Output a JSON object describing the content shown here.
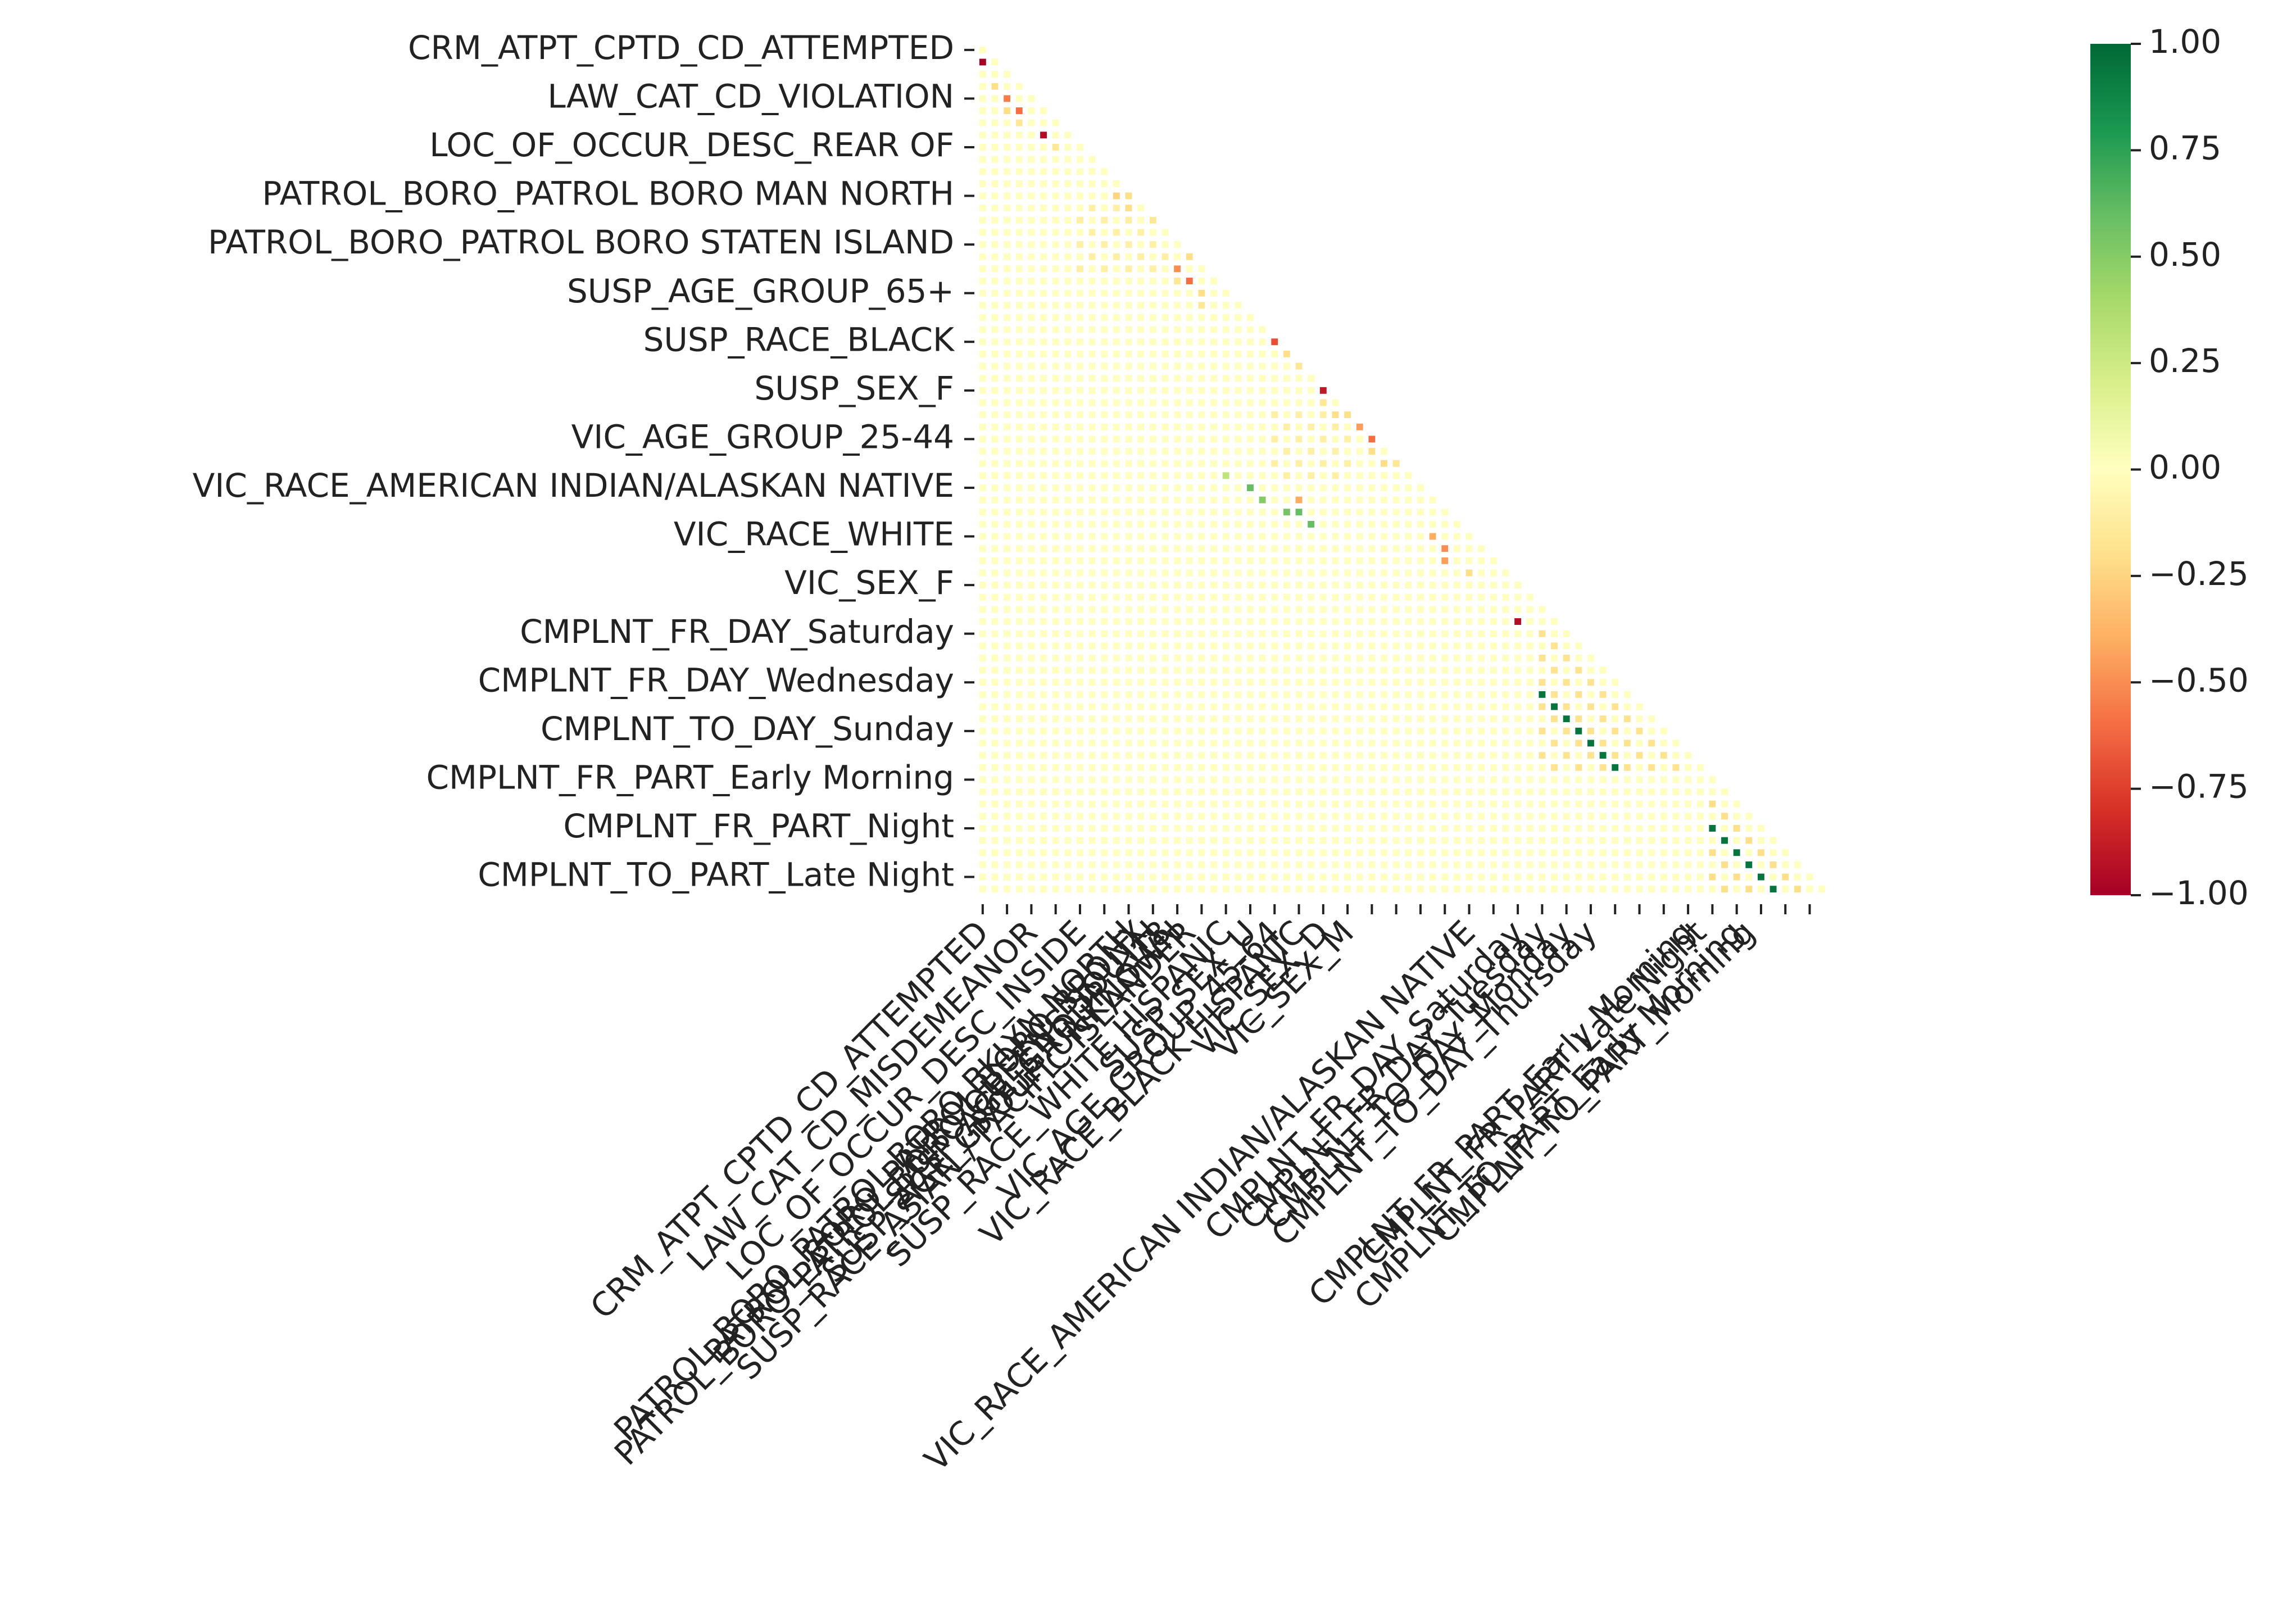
{
  "chart_data": {
    "type": "heatmap",
    "title": "",
    "xlabel": "",
    "ylabel": "",
    "mask": "lower-triangle",
    "n_rows": 70,
    "y_tick_labels": [
      "CRM_ATPT_CPTD_CD_ATTEMPTED",
      "LAW_CAT_CD_VIOLATION",
      "LOC_OF_OCCUR_DESC_REAR OF",
      "PATROL_BORO_PATROL BORO MAN NORTH",
      "PATROL_BORO_PATROL BORO STATEN ISLAND",
      "SUSP_AGE_GROUP_65+",
      "SUSP_RACE_BLACK",
      "SUSP_SEX_F",
      "VIC_AGE_GROUP_25-44",
      "VIC_RACE_AMERICAN INDIAN/ALASKAN NATIVE",
      "VIC_RACE_WHITE",
      "VIC_SEX_F",
      "CMPLNT_FR_DAY_Saturday",
      "CMPLNT_FR_DAY_Wednesday",
      "CMPLNT_TO_DAY_Sunday",
      "CMPLNT_FR_PART_Early Morning",
      "CMPLNT_FR_PART_Night",
      "CMPLNT_TO_PART_Late Night"
    ],
    "x_tick_labels": [
      "CRM_ATPT_CPTD_CD_ATTEMPTED",
      "LAW_CAT_CD_MISDEMEANOR",
      "LOC_OF_OCCUR_DESC_INSIDE",
      "PATROL_BORO_PATROL BORO BKLYN NORTH",
      "PATROL_BORO_PATROL BORO BRONX",
      "PATROL_BORO_PATROL BORO QUEENS SOUTH",
      "SUSP_AGE_GROUP_<18",
      "SUSP_AGE_GROUP_UNKNOWN",
      "SUSP_RACE_ASIAN / PACIFIC ISLANDER",
      "SUSP_RACE_WHITE HISPANIC",
      "SUSP_SEX_U",
      "VIC_AGE_GROUP_45-64",
      "VIC_RACE_BLACK HISPANIC",
      "VIC_SEX_D",
      "VIC_SEX_M",
      "VIC_RACE_AMERICAN INDIAN/ALASKAN NATIVE",
      "CMPLNT_FR_DAY_Saturday",
      "CMPLNT_FR_DAY_Tuesday",
      "CMPLNT_TO_DAY_Monday",
      "CMPLNT_TO_DAY_Thursday",
      "CMPLNT_FR_PART_Early Morning",
      "CMPLNT_FR_PART_Late Night",
      "CMPLNT_TO_PART_Early Morning",
      "CMPLNT_TO_PART_Morning"
    ],
    "colorbar": {
      "min": -1.0,
      "max": 1.0,
      "ticks": [
        "1.00",
        "0.75",
        "0.50",
        "0.25",
        "0.00",
        "−0.25",
        "−0.50",
        "−0.75",
        "−1.00"
      ],
      "colormap": "RdYlGn",
      "stops": [
        "#a50026",
        "#d73027",
        "#f46d43",
        "#fdae61",
        "#fee08b",
        "#ffffbf",
        "#d9ef8b",
        "#a6d96a",
        "#66bd63",
        "#1a9850",
        "#006837"
      ]
    },
    "background_value": 0.0,
    "highlighted_cells": [
      {
        "row": 1,
        "col": 0,
        "value": -1.0
      },
      {
        "row": 3,
        "col": 1,
        "value": -0.2
      },
      {
        "row": 4,
        "col": 2,
        "value": -0.55
      },
      {
        "row": 5,
        "col": 2,
        "value": -0.2
      },
      {
        "row": 5,
        "col": 3,
        "value": -0.6
      },
      {
        "row": 6,
        "col": 3,
        "value": -0.15
      },
      {
        "row": 7,
        "col": 5,
        "value": -0.95
      },
      {
        "row": 8,
        "col": 6,
        "value": -0.15
      },
      {
        "row": 12,
        "col": 11,
        "value": -0.25
      },
      {
        "row": 12,
        "col": 12,
        "value": -0.2
      },
      {
        "row": 13,
        "col": 12,
        "value": -0.2
      },
      {
        "row": 14,
        "col": 14,
        "value": -0.15
      },
      {
        "row": 17,
        "col": 17,
        "value": -0.2
      },
      {
        "row": 18,
        "col": 16,
        "value": -0.5
      },
      {
        "row": 19,
        "col": 16,
        "value": -0.15
      },
      {
        "row": 19,
        "col": 17,
        "value": -0.6
      },
      {
        "row": 20,
        "col": 18,
        "value": -0.2
      },
      {
        "row": 21,
        "col": 18,
        "value": -0.15
      },
      {
        "row": 21,
        "col": 23,
        "value": -0.2
      },
      {
        "row": 22,
        "col": 24,
        "value": -0.3
      },
      {
        "row": 23,
        "col": 24,
        "value": -0.5
      },
      {
        "row": 24,
        "col": 24,
        "value": -0.7
      },
      {
        "row": 25,
        "col": 25,
        "value": -0.2
      },
      {
        "row": 26,
        "col": 26,
        "value": -0.15
      },
      {
        "row": 28,
        "col": 28,
        "value": -0.9
      },
      {
        "row": 29,
        "col": 28,
        "value": -0.15
      },
      {
        "row": 30,
        "col": 29,
        "value": -0.2
      },
      {
        "row": 30,
        "col": 30,
        "value": -0.2
      },
      {
        "row": 31,
        "col": 31,
        "value": -0.45
      },
      {
        "row": 32,
        "col": 32,
        "value": -0.6
      },
      {
        "row": 33,
        "col": 32,
        "value": -0.2
      },
      {
        "row": 34,
        "col": 33,
        "value": -0.2
      },
      {
        "row": 34,
        "col": 34,
        "value": -0.15
      },
      {
        "row": 35,
        "col": 20,
        "value": 0.3
      },
      {
        "row": 36,
        "col": 22,
        "value": 0.6
      },
      {
        "row": 37,
        "col": 23,
        "value": 0.5
      },
      {
        "row": 37,
        "col": 26,
        "value": -0.4
      },
      {
        "row": 38,
        "col": 25,
        "value": 0.55
      },
      {
        "row": 38,
        "col": 26,
        "value": 0.6
      },
      {
        "row": 39,
        "col": 27,
        "value": 0.6
      },
      {
        "row": 40,
        "col": 37,
        "value": -0.4
      },
      {
        "row": 41,
        "col": 38,
        "value": -0.5
      },
      {
        "row": 42,
        "col": 38,
        "value": -0.45
      },
      {
        "row": 43,
        "col": 40,
        "value": -0.2
      },
      {
        "row": 47,
        "col": 44,
        "value": -0.95
      },
      {
        "row": 53,
        "col": 46,
        "value": 0.95
      },
      {
        "row": 54,
        "col": 47,
        "value": 0.95
      },
      {
        "row": 55,
        "col": 48,
        "value": 0.95
      },
      {
        "row": 56,
        "col": 49,
        "value": 0.95
      },
      {
        "row": 57,
        "col": 50,
        "value": 0.95
      },
      {
        "row": 58,
        "col": 51,
        "value": 0.95
      },
      {
        "row": 59,
        "col": 52,
        "value": 0.95
      },
      {
        "row": 64,
        "col": 60,
        "value": 0.95
      },
      {
        "row": 65,
        "col": 61,
        "value": 0.95
      },
      {
        "row": 66,
        "col": 62,
        "value": 0.95
      },
      {
        "row": 67,
        "col": 63,
        "value": 0.95
      },
      {
        "row": 68,
        "col": 64,
        "value": 0.95
      },
      {
        "row": 69,
        "col": 65,
        "value": 0.95
      }
    ],
    "negative_band_blocks": [
      {
        "rows": [
          48,
          59
        ],
        "cols": [
          46,
          59
        ],
        "value": -0.18
      },
      {
        "rows": [
          60,
          69
        ],
        "cols": [
          60,
          69
        ],
        "value": -0.2
      },
      {
        "rows": [
          13,
          18
        ],
        "cols": [
          8,
          15
        ],
        "value": -0.1
      },
      {
        "rows": [
          30,
          35
        ],
        "cols": [
          24,
          30
        ],
        "value": -0.1
      }
    ]
  }
}
